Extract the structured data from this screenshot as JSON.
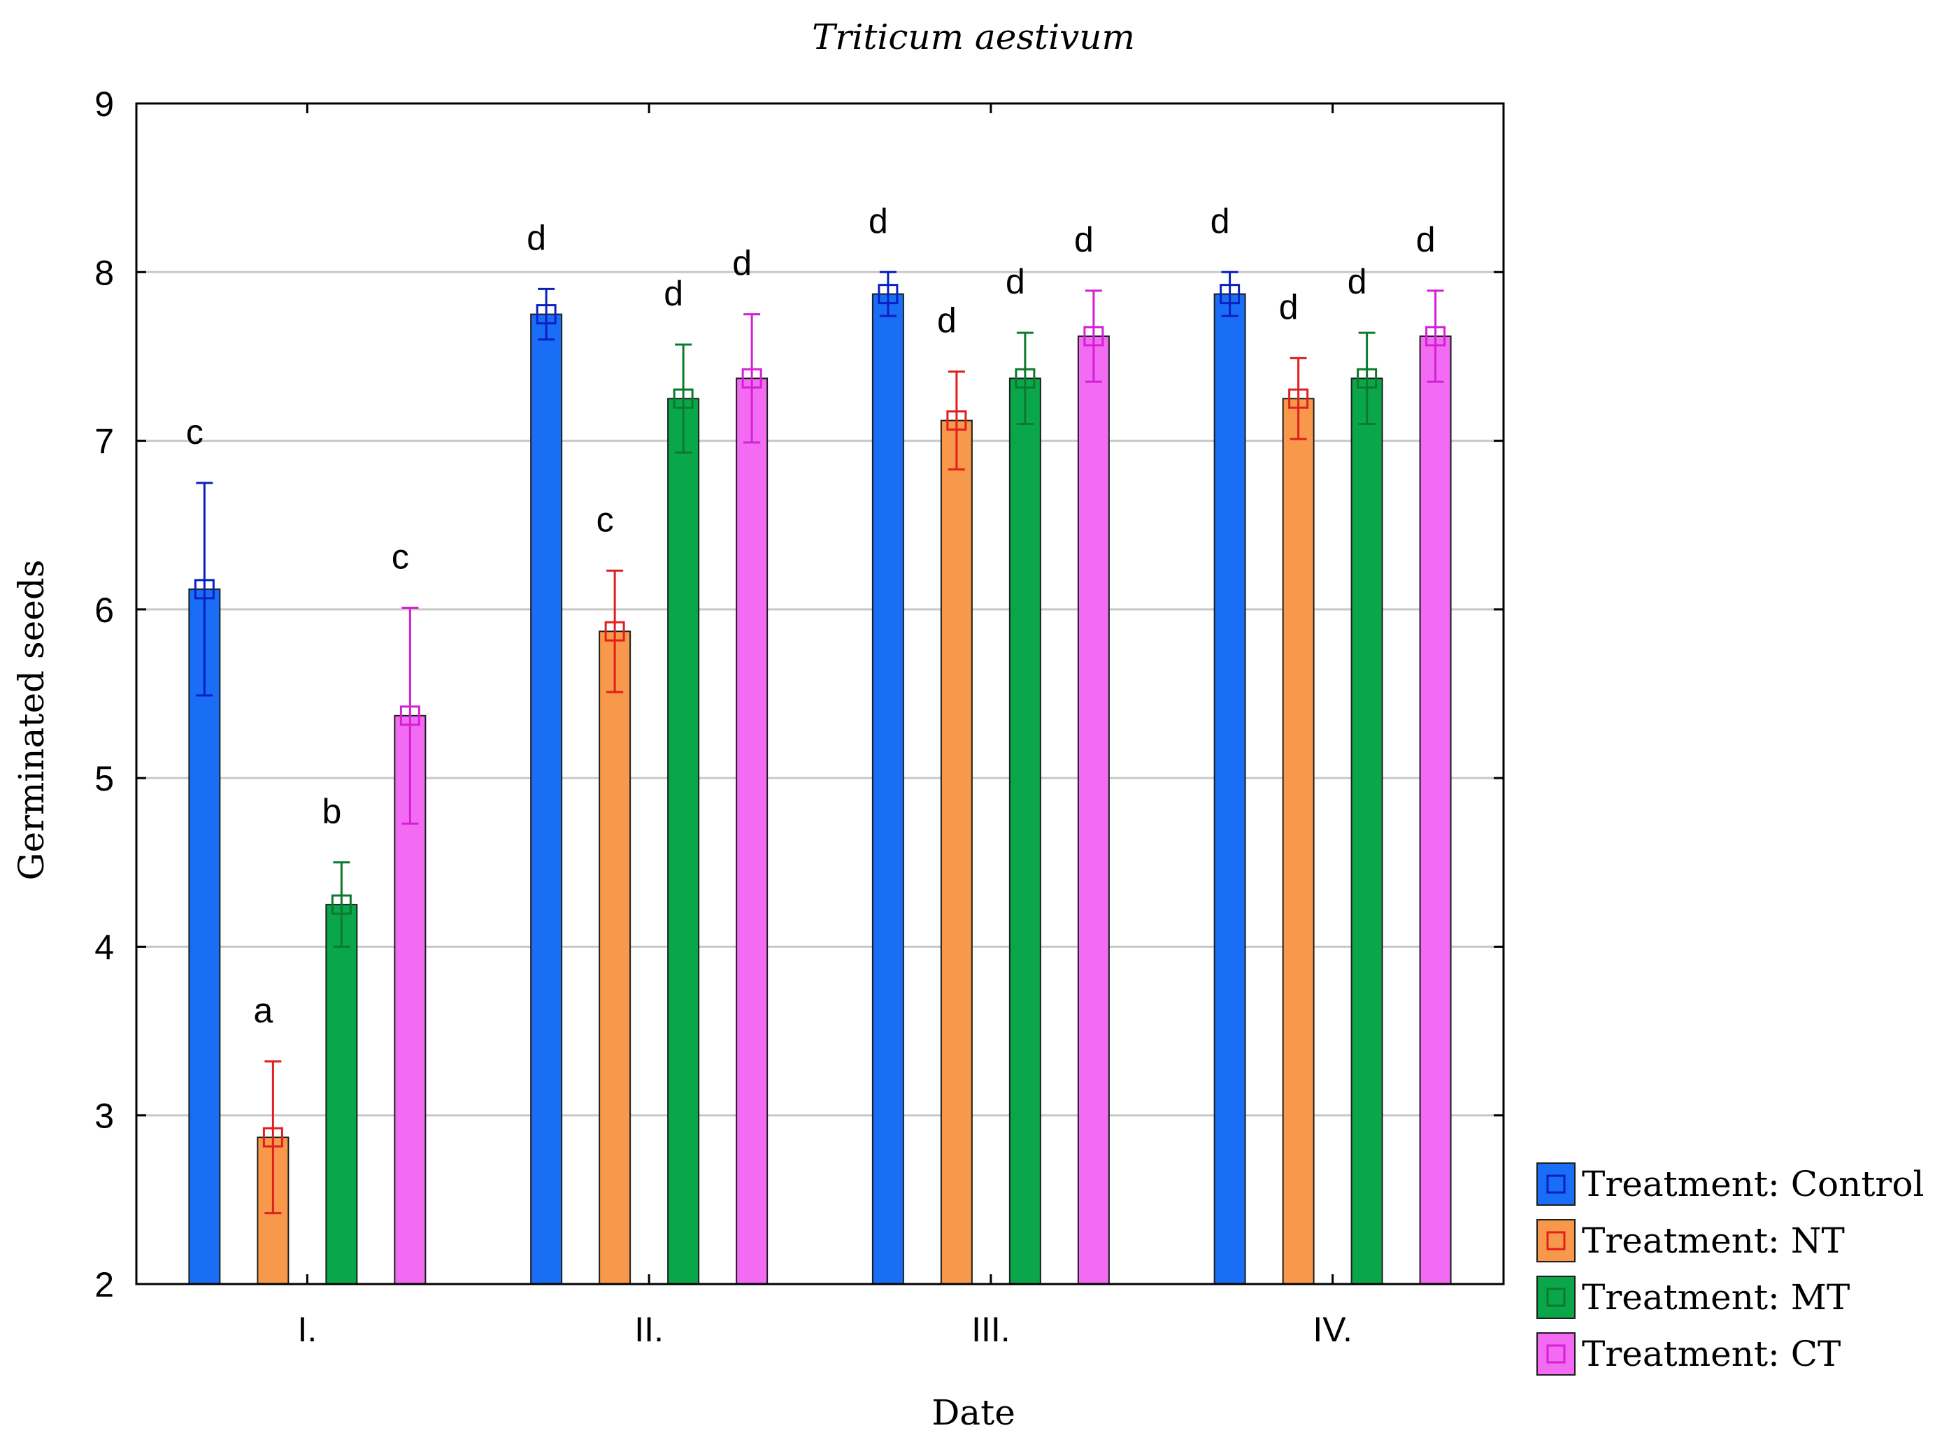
{
  "chart_data": {
    "type": "bar",
    "title": "Triticum aestivum",
    "xlabel": "Date",
    "ylabel": "Germinated seeds",
    "ylim": [
      2,
      9
    ],
    "yticks": [
      "2",
      "3",
      "4",
      "5",
      "6",
      "7",
      "8",
      "9"
    ],
    "grid": true,
    "legend_position": "bottom-right, outside",
    "categories": [
      "I.",
      "II.",
      "III.",
      "IV."
    ],
    "series": [
      {
        "name": "Treatment: Control",
        "color": "#1a6ef5",
        "error_color": "#0a1fc2",
        "values": [
          6.12,
          7.75,
          7.87,
          7.87
        ],
        "errors": [
          0.63,
          0.15,
          0.13,
          0.13
        ],
        "letters": [
          "c",
          "d",
          "d",
          "d"
        ]
      },
      {
        "name": "Treatment: NT",
        "color": "#f7984a",
        "error_color": "#e0201e",
        "values": [
          2.87,
          5.87,
          7.12,
          7.25
        ],
        "errors": [
          0.45,
          0.36,
          0.29,
          0.24
        ],
        "letters": [
          "a",
          "c",
          "d",
          "d"
        ]
      },
      {
        "name": "Treatment: MT",
        "color": "#0aa64a",
        "error_color": "#0c7a2c",
        "values": [
          4.25,
          7.25,
          7.37,
          7.37
        ],
        "errors": [
          0.25,
          0.32,
          0.27,
          0.27
        ],
        "letters": [
          "b",
          "d",
          "d",
          "d"
        ]
      },
      {
        "name": "Treatment: CT",
        "color": "#f36bf3",
        "error_color": "#d320d3",
        "values": [
          5.37,
          7.37,
          7.62,
          7.62
        ],
        "errors": [
          0.64,
          0.38,
          0.27,
          0.27
        ],
        "letters": [
          "c",
          "d",
          "d",
          "d"
        ]
      }
    ]
  }
}
